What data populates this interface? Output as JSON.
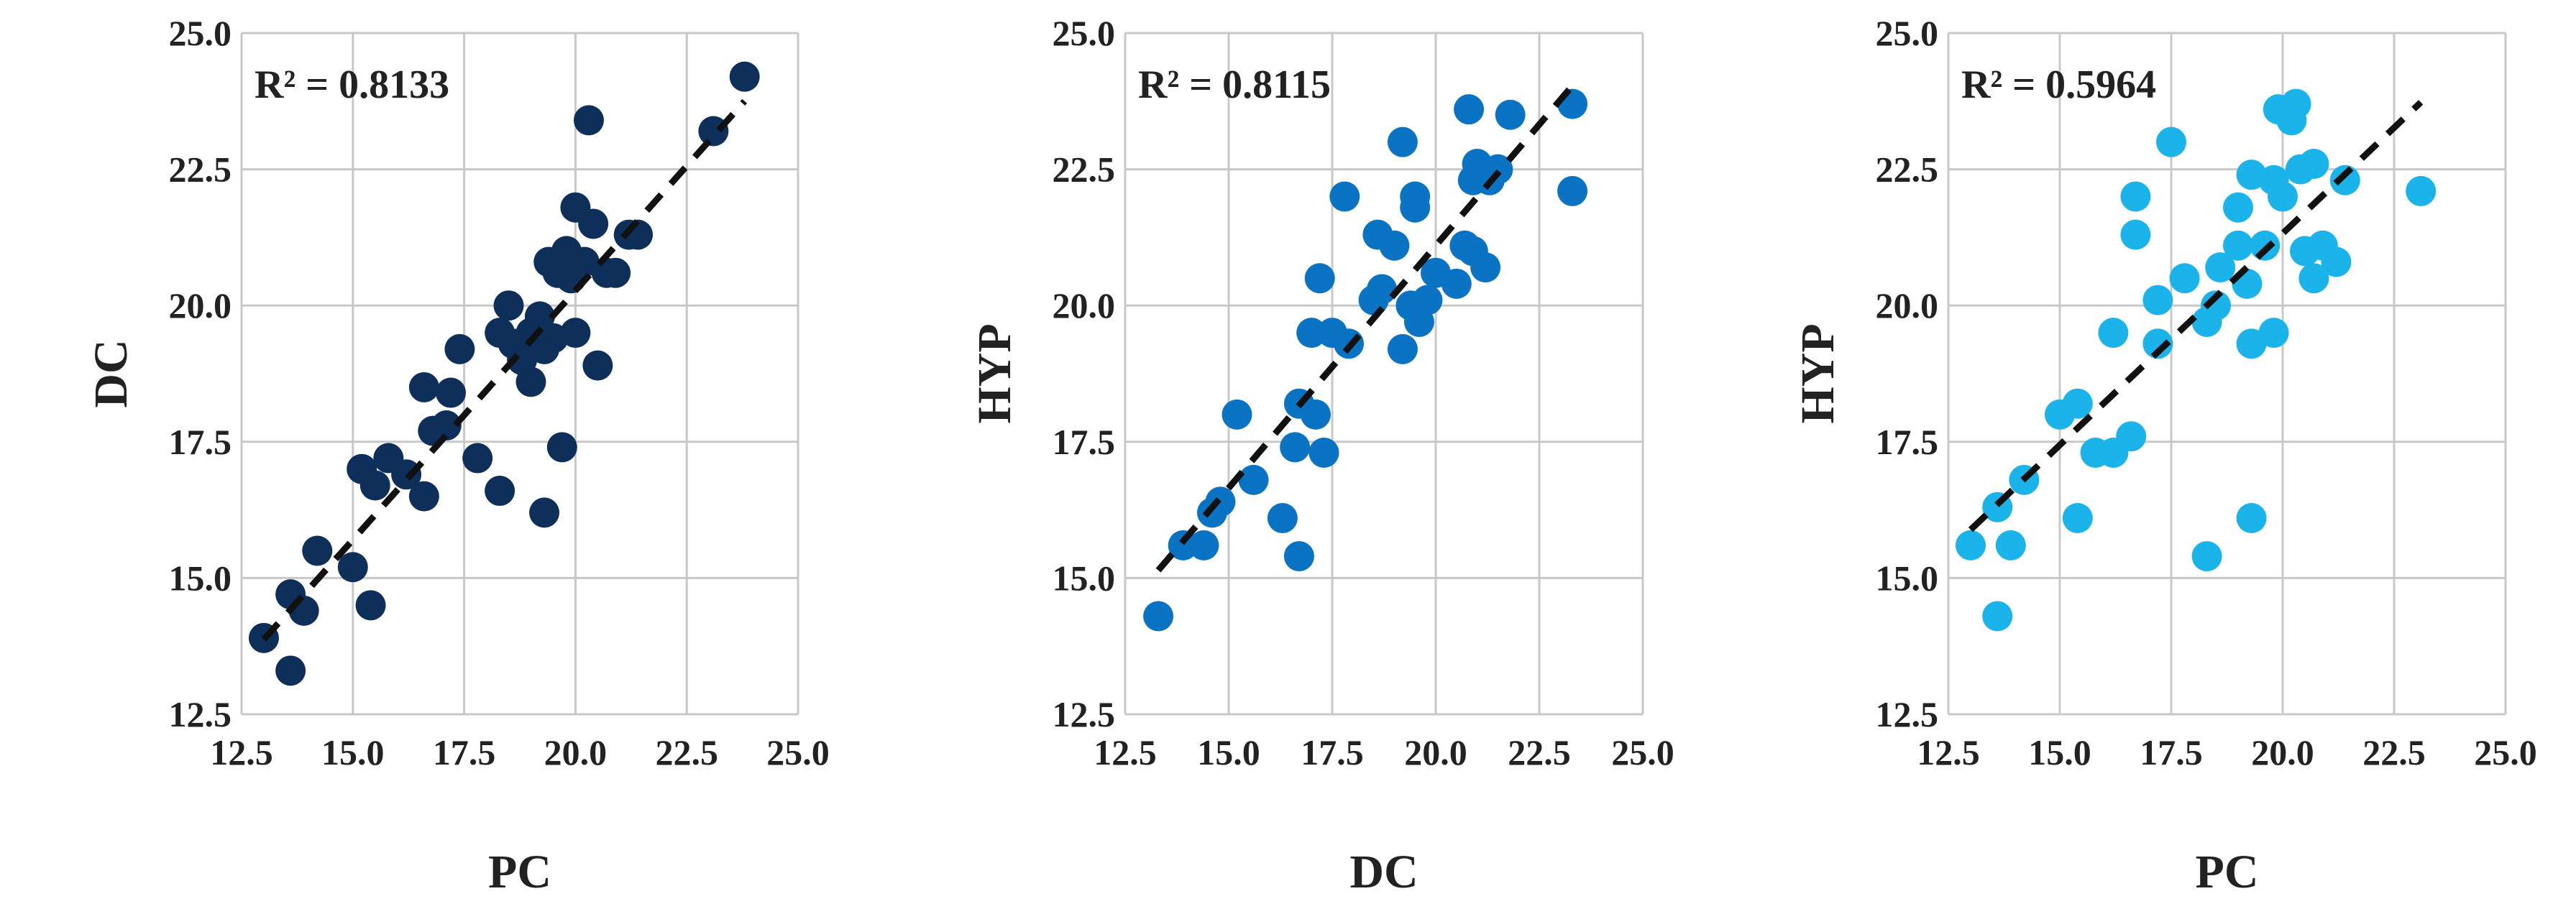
{
  "chart_data": [
    {
      "type": "scatter",
      "annotation": "R² = 0.8133",
      "x_label": "PC",
      "y_label": "DC",
      "color": "#0d2f5a",
      "trendline": true,
      "grid": true,
      "xlim": [
        12.5,
        25
      ],
      "ylim": [
        12.5,
        25
      ],
      "xticks": [
        12.5,
        {
          "value": 15,
          "label": "15.0"
        },
        17.5,
        {
          "value": 20,
          "label": "20.0"
        },
        22.5,
        {
          "value": 25,
          "label": "25.0"
        }
      ],
      "yticks": [
        12.5,
        {
          "value": 15,
          "label": "15.0"
        },
        17.5,
        {
          "value": 20,
          "label": "20.0"
        },
        22.5,
        {
          "value": 25,
          "label": "25.0"
        }
      ],
      "x": [
        13.0,
        13.6,
        13.6,
        13.9,
        14.2,
        15.0,
        15.2,
        15.4,
        15.5,
        15.8,
        16.2,
        16.6,
        16.6,
        16.8,
        17.1,
        17.2,
        17.4,
        17.8,
        18.3,
        18.3,
        18.5,
        18.6,
        19.0,
        19.0,
        19.2,
        19.3,
        19.3,
        19.4,
        19.6,
        19.7,
        19.8,
        19.9,
        20.0,
        20.0,
        20.2,
        20.3,
        20.4,
        20.5,
        20.7,
        20.9,
        21.2,
        21.4,
        23.1,
        23.8,
        19.5,
        18.8
      ],
      "y": [
        13.9,
        13.3,
        14.7,
        14.4,
        15.5,
        15.2,
        17.0,
        14.5,
        16.7,
        17.2,
        16.9,
        16.5,
        18.5,
        17.7,
        17.8,
        18.4,
        19.2,
        17.2,
        16.6,
        19.5,
        20.0,
        19.3,
        18.6,
        19.5,
        19.8,
        16.2,
        19.2,
        20.8,
        20.6,
        17.4,
        21.0,
        20.5,
        19.5,
        21.8,
        20.8,
        23.4,
        21.5,
        18.9,
        20.6,
        20.6,
        21.3,
        21.3,
        23.2,
        24.2,
        19.4,
        19.0
      ]
    },
    {
      "type": "scatter",
      "annotation": "R² = 0.8115",
      "x_label": "DC",
      "y_label": "HYP",
      "color": "#0a73c4",
      "trendline": true,
      "grid": true,
      "xlim": [
        12.5,
        25
      ],
      "ylim": [
        12.5,
        25
      ],
      "xticks": [
        12.5,
        {
          "value": 15,
          "label": "15.0"
        },
        17.5,
        {
          "value": 20,
          "label": "20.0"
        },
        22.5,
        {
          "value": 25,
          "label": "25.0"
        }
      ],
      "yticks": [
        12.5,
        {
          "value": 15,
          "label": "15.0"
        },
        17.5,
        {
          "value": 20,
          "label": "20.0"
        },
        22.5,
        {
          "value": 25,
          "label": "25.0"
        }
      ],
      "x": [
        13.3,
        13.9,
        14.4,
        14.6,
        14.8,
        15.2,
        15.6,
        16.3,
        16.6,
        16.7,
        16.7,
        17.0,
        17.1,
        17.2,
        17.3,
        17.5,
        17.8,
        17.9,
        18.5,
        18.6,
        18.7,
        19.0,
        19.2,
        19.2,
        19.4,
        19.5,
        19.5,
        19.6,
        19.8,
        20.0,
        20.5,
        20.7,
        20.8,
        20.9,
        21.0,
        21.2,
        21.3,
        21.5,
        21.8,
        23.3,
        23.3,
        20.9
      ],
      "y": [
        14.3,
        15.6,
        15.6,
        16.2,
        16.4,
        18.0,
        16.8,
        16.1,
        17.4,
        18.2,
        15.4,
        19.5,
        18.0,
        20.5,
        17.3,
        19.5,
        22.0,
        19.3,
        20.1,
        21.3,
        20.3,
        21.1,
        23.0,
        19.2,
        20.0,
        22.0,
        21.8,
        19.7,
        20.1,
        20.6,
        20.4,
        21.1,
        23.6,
        22.3,
        22.6,
        20.7,
        22.3,
        22.5,
        23.5,
        23.7,
        22.1,
        21.0
      ]
    },
    {
      "type": "scatter",
      "annotation": "R² = 0.5964",
      "x_label": "PC",
      "y_label": "HYP",
      "color": "#1ab4ea",
      "trendline": true,
      "grid": true,
      "xlim": [
        12.5,
        25
      ],
      "ylim": [
        12.5,
        25
      ],
      "xticks": [
        12.5,
        {
          "value": 15,
          "label": "15.0"
        },
        17.5,
        {
          "value": 20,
          "label": "20.0"
        },
        22.5,
        {
          "value": 25,
          "label": "25.0"
        }
      ],
      "yticks": [
        12.5,
        {
          "value": 15,
          "label": "15.0"
        },
        17.5,
        {
          "value": 20,
          "label": "20.0"
        },
        22.5,
        {
          "value": 25,
          "label": "25.0"
        }
      ],
      "x": [
        13.0,
        13.6,
        13.6,
        13.9,
        14.2,
        15.0,
        15.4,
        15.4,
        15.8,
        16.2,
        16.2,
        16.6,
        16.7,
        16.7,
        17.2,
        17.2,
        17.5,
        17.8,
        18.3,
        18.3,
        18.5,
        18.6,
        19.0,
        19.0,
        19.2,
        19.3,
        19.3,
        19.3,
        19.6,
        19.8,
        19.8,
        19.9,
        20.0,
        20.2,
        20.3,
        20.4,
        20.5,
        20.7,
        20.7,
        20.9,
        21.2,
        21.4,
        23.1
      ],
      "y": [
        15.6,
        14.3,
        16.3,
        15.6,
        16.8,
        18.0,
        16.1,
        18.2,
        17.3,
        19.5,
        17.3,
        17.6,
        21.3,
        22.0,
        20.1,
        19.3,
        23.0,
        20.5,
        15.4,
        19.7,
        20.0,
        20.7,
        21.1,
        21.8,
        20.4,
        16.1,
        19.3,
        22.4,
        21.1,
        19.5,
        22.3,
        23.6,
        22.0,
        23.4,
        23.7,
        22.5,
        21.0,
        20.5,
        22.6,
        21.1,
        20.8,
        22.3,
        22.1
      ]
    }
  ]
}
